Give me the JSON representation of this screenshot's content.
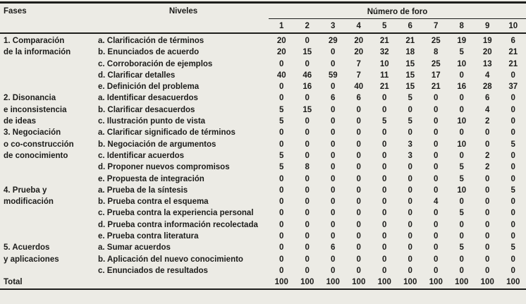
{
  "colors": {
    "background": "#ECEBE5",
    "rule": "#1E1E1C",
    "text": "#1C1C1A"
  },
  "table": {
    "headers": {
      "fases": "Fases",
      "niveles": "Niveles",
      "foro_group": "Número de foro",
      "foro_numbers": [
        "1",
        "2",
        "3",
        "4",
        "5",
        "6",
        "7",
        "8",
        "9",
        "10"
      ]
    },
    "sections": [
      {
        "phase_lines": [
          "1. Comparación",
          "de la información"
        ],
        "rows": [
          {
            "level": "a. Clarificación de términos",
            "values": [
              20,
              0,
              29,
              20,
              21,
              21,
              25,
              19,
              19,
              6
            ]
          },
          {
            "level": "b. Enunciados de acuerdo",
            "values": [
              20,
              15,
              0,
              20,
              32,
              18,
              8,
              5,
              20,
              21
            ]
          },
          {
            "level": "c. Corroboración de ejemplos",
            "values": [
              0,
              0,
              0,
              7,
              10,
              15,
              25,
              10,
              13,
              21
            ]
          },
          {
            "level": "d. Clarificar detalles",
            "values": [
              40,
              46,
              59,
              7,
              11,
              15,
              17,
              0,
              4,
              0
            ]
          },
          {
            "level": "e. Definición del problema",
            "values": [
              0,
              16,
              0,
              40,
              21,
              15,
              21,
              16,
              28,
              37
            ]
          }
        ]
      },
      {
        "phase_lines": [
          "2. Disonancia",
          "e inconsistencia",
          "de ideas"
        ],
        "rows": [
          {
            "level": "a. Identificar desacuerdos",
            "values": [
              0,
              0,
              6,
              6,
              0,
              5,
              0,
              0,
              6,
              0
            ]
          },
          {
            "level": "b. Clarificar desacuerdos",
            "values": [
              5,
              15,
              0,
              0,
              0,
              0,
              0,
              0,
              4,
              0
            ]
          },
          {
            "level": "c. Ilustración punto de vista",
            "values": [
              5,
              0,
              0,
              0,
              5,
              5,
              0,
              10,
              2,
              0
            ]
          }
        ]
      },
      {
        "phase_lines": [
          "3. Negociación",
          "o co-construcción",
          "de conocimiento"
        ],
        "rows": [
          {
            "level": "a. Clarificar significado de términos",
            "values": [
              0,
              0,
              0,
              0,
              0,
              0,
              0,
              0,
              0,
              0
            ]
          },
          {
            "level": "b. Negociación de argumentos",
            "values": [
              0,
              0,
              0,
              0,
              0,
              3,
              0,
              10,
              0,
              5
            ]
          },
          {
            "level": "c. Identificar acuerdos",
            "values": [
              5,
              0,
              0,
              0,
              0,
              3,
              0,
              0,
              2,
              0
            ]
          },
          {
            "level": "d. Proponer nuevos compromisos",
            "values": [
              5,
              8,
              0,
              0,
              0,
              0,
              0,
              5,
              2,
              0
            ]
          },
          {
            "level": "e. Propuesta de integración",
            "values": [
              0,
              0,
              0,
              0,
              0,
              0,
              0,
              5,
              0,
              0
            ]
          }
        ]
      },
      {
        "phase_lines": [
          "4. Prueba y",
          "modificación"
        ],
        "rows": [
          {
            "level": "a. Prueba de la síntesis",
            "values": [
              0,
              0,
              0,
              0,
              0,
              0,
              0,
              10,
              0,
              5
            ]
          },
          {
            "level": "b. Prueba contra el esquema",
            "values": [
              0,
              0,
              0,
              0,
              0,
              0,
              4,
              0,
              0,
              0
            ]
          },
          {
            "level": "c. Prueba contra la experiencia personal",
            "values": [
              0,
              0,
              0,
              0,
              0,
              0,
              0,
              5,
              0,
              0
            ]
          },
          {
            "level": "d. Prueba contra información recolectada",
            "values": [
              0,
              0,
              0,
              0,
              0,
              0,
              0,
              0,
              0,
              0
            ]
          },
          {
            "level": "e. Prueba contra literatura",
            "values": [
              0,
              0,
              0,
              0,
              0,
              0,
              0,
              0,
              0,
              0
            ]
          }
        ]
      },
      {
        "phase_lines": [
          "5. Acuerdos",
          "y aplicaciones"
        ],
        "rows": [
          {
            "level": "a. Sumar acuerdos",
            "values": [
              0,
              0,
              6,
              0,
              0,
              0,
              0,
              5,
              0,
              5
            ]
          },
          {
            "level": "b. Aplicación del nuevo conocimiento",
            "values": [
              0,
              0,
              0,
              0,
              0,
              0,
              0,
              0,
              0,
              0
            ]
          },
          {
            "level": "c. Enunciados de resultados",
            "values": [
              0,
              0,
              0,
              0,
              0,
              0,
              0,
              0,
              0,
              0
            ]
          }
        ]
      }
    ],
    "total": {
      "label": "Total",
      "values": [
        100,
        100,
        100,
        100,
        100,
        100,
        100,
        100,
        100,
        100
      ]
    }
  },
  "chart_data": {
    "type": "table",
    "title": "",
    "column_groups": [
      "Fases",
      "Niveles",
      "Número de foro"
    ],
    "foro_columns": [
      1,
      2,
      3,
      4,
      5,
      6,
      7,
      8,
      9,
      10
    ]
  }
}
